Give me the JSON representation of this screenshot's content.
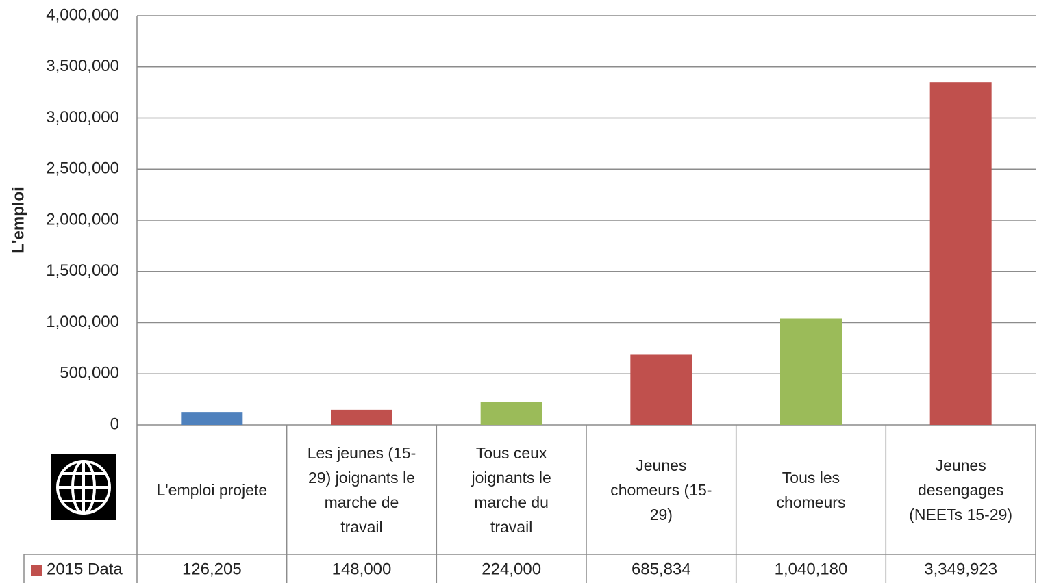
{
  "chart_data": {
    "type": "bar",
    "y_label": "L'emploi",
    "categories": [
      "L'emploi projete",
      "Les jeunes (15-29) joignants le marche de travail",
      "Tous ceux joignants le marche du travail",
      "Jeunes chomeurs (15-29)",
      "Tous les chomeurs",
      "Jeunes desengages (NEETs 15-29)"
    ],
    "series": [
      {
        "name": "2015 Data",
        "color": "#c0504d",
        "values": [
          126205,
          148000,
          224000,
          685834,
          1040180,
          3349923
        ],
        "value_labels": [
          "126,205",
          "148,000",
          "224,000",
          "685,834",
          "1,040,180",
          "3,349,923"
        ]
      }
    ],
    "bar_colors": [
      "#4f81bd",
      "#c0504d",
      "#9bbb59",
      "#c0504d",
      "#9bbb59",
      "#c0504d"
    ],
    "ylim": [
      0,
      4000000
    ],
    "yticks": [
      0,
      {
        "value": 500000,
        "label": "500,000"
      },
      {
        "value": 1000000,
        "label": "1,000,000"
      },
      {
        "value": 1500000,
        "label": "1,500,000"
      },
      {
        "value": 2000000,
        "label": "2,000,000"
      },
      {
        "value": 2500000,
        "label": "2,500,000"
      },
      {
        "value": 3000000,
        "label": "3,000,000"
      },
      {
        "value": 3500000,
        "label": "3,500,000"
      },
      {
        "value": 4000000,
        "label": "4,000,000"
      }
    ],
    "grid": true
  }
}
